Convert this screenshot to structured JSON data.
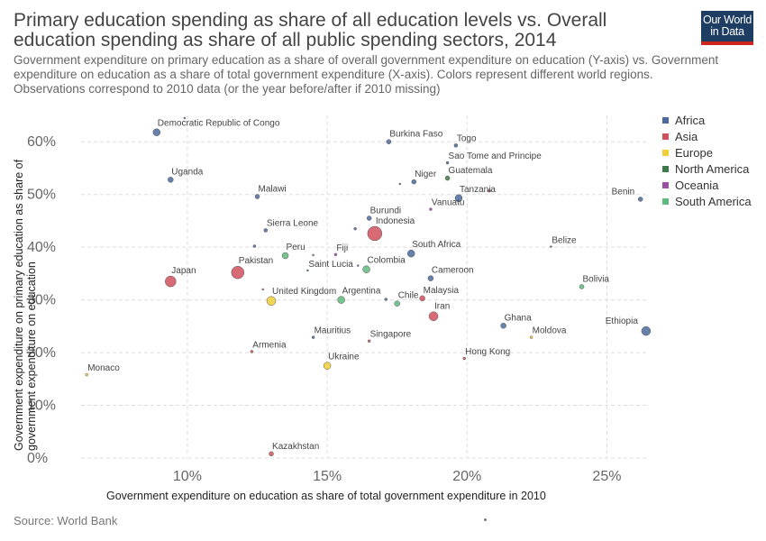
{
  "header": {
    "title": "Primary education spending as share of all education levels vs. Overall education spending as share of all public spending sectors, 2014",
    "subtitle": "Government expenditure on primary education as a share of overall government expenditure on education (Y-axis) vs. Government expenditure on education as a share of total government expenditure (X-axis). Colors represent different world regions. Observations correspond to 2010 data (or the year before/after if 2010 missing)",
    "logo_line1": "Our World",
    "logo_line2": "in Data"
  },
  "footer": {
    "source": "Source: World Bank"
  },
  "colors": {
    "Africa": "#4c6a9c",
    "Asia": "#d0505c",
    "Europe": "#f2cf3a",
    "North America": "#3e7a4a",
    "Oceania": "#9a4fa3",
    "South America": "#5fba7d"
  },
  "chart_data": {
    "type": "scatter",
    "title": "Primary education spending as share of all education levels vs. Overall education spending as share of all public spending sectors, 2014",
    "xlabel": "Government expenditure on education as share of total government expenditure in 2010",
    "ylabel": "Government expenditure on primary education as share of government expenditure on education",
    "xlim": [
      6.2,
      26.5
    ],
    "ylim": [
      0,
      65
    ],
    "x_ticks": [
      10,
      15,
      20,
      25
    ],
    "x_tick_labels": [
      "10%",
      "15%",
      "20%",
      "25%"
    ],
    "y_ticks": [
      0,
      10,
      20,
      30,
      40,
      50,
      60
    ],
    "y_tick_labels": [
      "0%",
      "10%",
      "20%",
      "30%",
      "40%",
      "50%",
      "60%"
    ],
    "grid": true,
    "legend": "right",
    "legend_entries": [
      "Africa",
      "Asia",
      "Europe",
      "North America",
      "Oceania",
      "South America"
    ],
    "points": [
      {
        "label": "Democratic Republic of Congo",
        "region": "Africa",
        "x": 8.9,
        "y": 61.8,
        "size": 4
      },
      {
        "label": "",
        "region": "Africa",
        "x": 9.9,
        "y": 64.5,
        "size": 1
      },
      {
        "label": "Uganda",
        "region": "Africa",
        "x": 9.4,
        "y": 52.8,
        "size": 3
      },
      {
        "label": "Malawi",
        "region": "Africa",
        "x": 12.5,
        "y": 49.6,
        "size": 2.5
      },
      {
        "label": "Sierra Leone",
        "region": "Africa",
        "x": 12.8,
        "y": 43.2,
        "size": 2
      },
      {
        "label": "",
        "region": "Africa",
        "x": 12.4,
        "y": 40.2,
        "size": 1.5
      },
      {
        "label": "Burkina Faso",
        "region": "Africa",
        "x": 17.2,
        "y": 60.0,
        "size": 2.5
      },
      {
        "label": "Togo",
        "region": "Africa",
        "x": 19.6,
        "y": 59.3,
        "size": 2
      },
      {
        "label": "Sao Tome and Principe",
        "region": "Africa",
        "x": 19.3,
        "y": 56.0,
        "size": 1.5
      },
      {
        "label": "Niger",
        "region": "Africa",
        "x": 18.1,
        "y": 52.4,
        "size": 2.5
      },
      {
        "label": "",
        "region": "Africa",
        "x": 17.6,
        "y": 52.0,
        "size": 1
      },
      {
        "label": "Tanzania",
        "region": "Africa",
        "x": 19.7,
        "y": 49.3,
        "size": 4
      },
      {
        "label": "Benin",
        "region": "Africa",
        "x": 26.2,
        "y": 49.1,
        "size": 2.5
      },
      {
        "label": "Burundi",
        "region": "Africa",
        "x": 16.5,
        "y": 45.5,
        "size": 2.5
      },
      {
        "label": "",
        "region": "Africa",
        "x": 16.0,
        "y": 43.5,
        "size": 1.5
      },
      {
        "label": "South Africa",
        "region": "Africa",
        "x": 18.0,
        "y": 38.8,
        "size": 4
      },
      {
        "label": "Cameroon",
        "region": "Africa",
        "x": 18.7,
        "y": 34.1,
        "size": 3
      },
      {
        "label": "",
        "region": "Africa",
        "x": 16.1,
        "y": 36.5,
        "size": 1
      },
      {
        "label": "",
        "region": "Africa",
        "x": 17.1,
        "y": 30.1,
        "size": 1.5
      },
      {
        "label": "Ghana",
        "region": "Africa",
        "x": 21.3,
        "y": 25.1,
        "size": 3
      },
      {
        "label": "Ethiopia",
        "region": "Africa",
        "x": 26.4,
        "y": 24.1,
        "size": 5
      },
      {
        "label": "Mauritius",
        "region": "Africa",
        "x": 14.5,
        "y": 22.9,
        "size": 1.5
      },
      {
        "label": "Indonesia",
        "region": "Asia",
        "x": 16.7,
        "y": 42.6,
        "size": 8
      },
      {
        "label": "Pakistan",
        "region": "Asia",
        "x": 11.8,
        "y": 35.2,
        "size": 7
      },
      {
        "label": "Japan",
        "region": "Asia",
        "x": 9.4,
        "y": 33.5,
        "size": 6
      },
      {
        "label": "",
        "region": "Asia",
        "x": 12.7,
        "y": 32.0,
        "size": 1
      },
      {
        "label": "Malaysia",
        "region": "Asia",
        "x": 18.4,
        "y": 30.3,
        "size": 3
      },
      {
        "label": "Iran",
        "region": "Asia",
        "x": 18.8,
        "y": 26.9,
        "size": 5
      },
      {
        "label": "Armenia",
        "region": "Asia",
        "x": 12.3,
        "y": 20.2,
        "size": 1.5
      },
      {
        "label": "Singapore",
        "region": "Asia",
        "x": 16.5,
        "y": 22.2,
        "size": 1.5
      },
      {
        "label": "Hong Kong",
        "region": "Asia",
        "x": 19.9,
        "y": 18.9,
        "size": 1.5
      },
      {
        "label": "Kazakhstan",
        "region": "Asia",
        "x": 13.0,
        "y": 0.8,
        "size": 2.5
      },
      {
        "label": "",
        "region": "Asia",
        "x": 20.8,
        "y": 50.7,
        "size": 1.5
      },
      {
        "label": "United Kingdom",
        "region": "Europe",
        "x": 13.0,
        "y": 29.8,
        "size": 5
      },
      {
        "label": "Ukraine",
        "region": "Europe",
        "x": 15.0,
        "y": 17.5,
        "size": 4
      },
      {
        "label": "Moldova",
        "region": "Europe",
        "x": 22.3,
        "y": 22.9,
        "size": 1.5
      },
      {
        "label": "Monaco",
        "region": "Europe",
        "x": 6.4,
        "y": 15.8,
        "size": 1.5
      },
      {
        "label": "Guatemala",
        "region": "North America",
        "x": 19.3,
        "y": 53.1,
        "size": 2.5
      },
      {
        "label": "Saint Lucia",
        "region": "North America",
        "x": 14.3,
        "y": 35.6,
        "size": 1
      },
      {
        "label": "Belize",
        "region": "North America",
        "x": 23.0,
        "y": 40.1,
        "size": 1
      },
      {
        "label": "Vanuatu",
        "region": "Oceania",
        "x": 18.7,
        "y": 47.2,
        "size": 1.5
      },
      {
        "label": "Fiji",
        "region": "Oceania",
        "x": 15.3,
        "y": 38.6,
        "size": 1.5
      },
      {
        "label": "",
        "region": "Oceania",
        "x": 14.5,
        "y": 38.5,
        "size": 1
      },
      {
        "label": "Peru",
        "region": "South America",
        "x": 13.5,
        "y": 38.4,
        "size": 3.5
      },
      {
        "label": "Colombia",
        "region": "South America",
        "x": 16.4,
        "y": 35.8,
        "size": 4
      },
      {
        "label": "Argentina",
        "region": "South America",
        "x": 15.5,
        "y": 30.0,
        "size": 4
      },
      {
        "label": "Chile",
        "region": "South America",
        "x": 17.5,
        "y": 29.3,
        "size": 3
      },
      {
        "label": "Bolivia",
        "region": "South America",
        "x": 24.1,
        "y": 32.5,
        "size": 2.5
      }
    ]
  }
}
